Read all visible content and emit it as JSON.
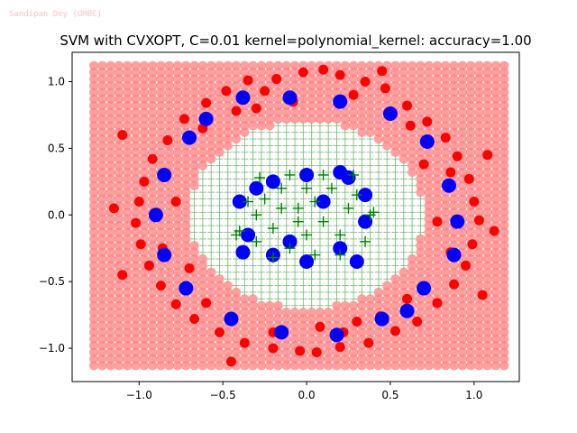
{
  "watermark": "Sandipan Dey (UMBC)",
  "chart_data": {
    "type": "scatter",
    "title": "SVM with CVXOPT, C=0.01 kernel=polynomial_kernel: accuracy=1.00",
    "xlabel": "",
    "ylabel": "",
    "xlim": [
      -1.4,
      1.27
    ],
    "ylim": [
      -1.25,
      1.22
    ],
    "x_ticks": [
      -1.0,
      -0.5,
      0.0,
      0.5,
      1.0
    ],
    "x_tick_labels": [
      "−1.0",
      "−0.5",
      "0.0",
      "0.5",
      "1.0"
    ],
    "y_ticks": [
      -1.0,
      -0.5,
      0.0,
      0.5,
      1.0
    ],
    "y_tick_labels": [
      "−1.0",
      "−0.5",
      "0.0",
      "0.5",
      "1.0"
    ],
    "grid": false,
    "legend": "none",
    "decision_region": {
      "x_range": [
        -1.27,
        1.2
      ],
      "y_range": [
        -1.13,
        1.12
      ],
      "grid_step": 0.05,
      "boundary": "circle",
      "boundary_radius": 0.7,
      "inner_class_marker": "plus",
      "inner_class_color": "#7fbf7f",
      "outer_class_marker": "circle",
      "outer_class_color": "#ff8080"
    },
    "series": [
      {
        "marker": "circle",
        "color": "#ff0000",
        "values": [
          [
            -0.02,
            1.07
          ],
          [
            0.1,
            1.09
          ],
          [
            -0.18,
            1.02
          ],
          [
            0.2,
            1.05
          ],
          [
            -0.35,
            1.01
          ],
          [
            0.35,
            1.0
          ],
          [
            -0.48,
            0.93
          ],
          [
            0.47,
            0.95
          ],
          [
            -0.6,
            0.84
          ],
          [
            0.6,
            0.82
          ],
          [
            -0.73,
            0.72
          ],
          [
            0.72,
            0.7
          ],
          [
            -0.83,
            0.56
          ],
          [
            0.83,
            0.58
          ],
          [
            -0.92,
            0.42
          ],
          [
            0.9,
            0.44
          ],
          [
            -0.97,
            0.25
          ],
          [
            0.97,
            0.27
          ],
          [
            -1.0,
            0.1
          ],
          [
            1.0,
            0.1
          ],
          [
            -1.02,
            -0.06
          ],
          [
            1.03,
            -0.04
          ],
          [
            -0.99,
            -0.22
          ],
          [
            0.99,
            -0.22
          ],
          [
            -0.94,
            -0.38
          ],
          [
            0.95,
            -0.38
          ],
          [
            -0.87,
            -0.53
          ],
          [
            0.88,
            -0.52
          ],
          [
            -0.78,
            -0.67
          ],
          [
            0.78,
            -0.66
          ],
          [
            -0.67,
            -0.78
          ],
          [
            0.66,
            -0.8
          ],
          [
            -0.52,
            -0.88
          ],
          [
            0.53,
            -0.87
          ],
          [
            -0.37,
            -0.96
          ],
          [
            0.37,
            -0.96
          ],
          [
            -0.2,
            -1.0
          ],
          [
            0.2,
            -0.99
          ],
          [
            -0.04,
            -1.02
          ],
          [
            0.06,
            -1.03
          ],
          [
            -0.25,
            0.93
          ],
          [
            0.28,
            0.9
          ],
          [
            -0.62,
            0.65
          ],
          [
            0.62,
            0.67
          ],
          [
            -0.85,
            0.3
          ],
          [
            0.86,
            0.32
          ],
          [
            -0.86,
            -0.25
          ],
          [
            0.86,
            -0.28
          ],
          [
            -0.6,
            -0.66
          ],
          [
            0.6,
            -0.63
          ],
          [
            -0.2,
            -0.88
          ],
          [
            0.22,
            -0.88
          ],
          [
            -1.15,
            0.05
          ],
          [
            1.12,
            -0.12
          ],
          [
            -1.1,
            -0.45
          ],
          [
            1.08,
            0.45
          ],
          [
            -0.45,
            -1.1
          ],
          [
            0.45,
            1.08
          ],
          [
            -0.3,
            0.8
          ],
          [
            0.3,
            -0.8
          ],
          [
            -0.78,
            0.1
          ],
          [
            0.78,
            -0.05
          ],
          [
            -1.1,
            0.6
          ],
          [
            1.05,
            -0.6
          ],
          [
            -0.08,
            0.85
          ],
          [
            0.08,
            -0.84
          ],
          [
            -0.7,
            -0.4
          ],
          [
            0.7,
            0.38
          ],
          [
            -0.42,
            0.78
          ],
          [
            0.44,
            -0.76
          ]
        ]
      },
      {
        "marker": "circle",
        "color": "#0000ff",
        "values": [
          [
            -0.38,
            0.88
          ],
          [
            -0.1,
            0.88
          ],
          [
            0.2,
            0.85
          ],
          [
            0.5,
            0.76
          ],
          [
            -0.7,
            0.58
          ],
          [
            0.72,
            0.55
          ],
          [
            -0.85,
            0.3
          ],
          [
            0.85,
            0.22
          ],
          [
            -0.9,
            0.0
          ],
          [
            0.9,
            -0.05
          ],
          [
            -0.85,
            -0.3
          ],
          [
            0.88,
            -0.3
          ],
          [
            -0.72,
            -0.55
          ],
          [
            0.7,
            -0.55
          ],
          [
            -0.45,
            -0.78
          ],
          [
            0.45,
            -0.78
          ],
          [
            -0.15,
            -0.88
          ],
          [
            0.18,
            -0.9
          ],
          [
            -0.6,
            0.72
          ],
          [
            0.6,
            -0.72
          ],
          [
            -0.4,
            0.1
          ],
          [
            -0.35,
            -0.15
          ],
          [
            -0.3,
            0.2
          ],
          [
            -0.2,
            -0.3
          ],
          [
            0.0,
            -0.35
          ],
          [
            0.2,
            -0.25
          ],
          [
            0.35,
            -0.05
          ],
          [
            0.35,
            0.15
          ],
          [
            0.2,
            0.32
          ],
          [
            0.0,
            0.3
          ],
          [
            -0.2,
            0.25
          ],
          [
            -0.1,
            -0.2
          ],
          [
            0.1,
            0.1
          ],
          [
            -0.38,
            -0.28
          ],
          [
            0.3,
            -0.35
          ],
          [
            0.25,
            0.28
          ]
        ]
      },
      {
        "marker": "plus",
        "color": "#008000",
        "values": [
          [
            -0.3,
            0.0
          ],
          [
            -0.25,
            0.12
          ],
          [
            -0.2,
            -0.1
          ],
          [
            -0.15,
            0.2
          ],
          [
            -0.1,
            -0.25
          ],
          [
            -0.05,
            0.05
          ],
          [
            0.0,
            0.2
          ],
          [
            0.0,
            -0.15
          ],
          [
            0.05,
            0.1
          ],
          [
            0.1,
            -0.05
          ],
          [
            0.15,
            0.2
          ],
          [
            0.2,
            -0.15
          ],
          [
            0.25,
            0.05
          ],
          [
            0.3,
            0.15
          ],
          [
            -0.35,
            0.1
          ],
          [
            -0.3,
            -0.2
          ],
          [
            0.1,
            0.3
          ],
          [
            -0.1,
            0.3
          ],
          [
            0.2,
            -0.3
          ],
          [
            -0.2,
            -0.32
          ],
          [
            0.35,
            -0.2
          ],
          [
            -0.4,
            -0.12
          ],
          [
            0.38,
            0.0
          ],
          [
            -0.05,
            -0.05
          ],
          [
            0.05,
            -0.3
          ],
          [
            -0.15,
            0.05
          ],
          [
            0.28,
            0.3
          ],
          [
            -0.28,
            0.28
          ],
          [
            -0.42,
            -0.15
          ],
          [
            0.4,
            0.02
          ]
        ]
      }
    ]
  }
}
